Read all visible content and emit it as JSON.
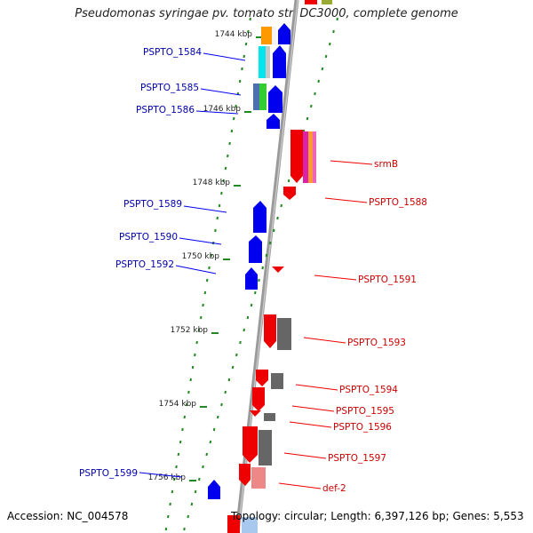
{
  "title": "Pseudomonas syringae pv. tomato str. DC3000, complete genome",
  "footer": {
    "accession": "Accession: NC_004578",
    "topology": "Topology: circular; Length: 6,397,126 bp; Genes: 5,553"
  },
  "colors": {
    "forward": "#0000ee",
    "reverse": "#ee0000",
    "forward_label": "#0000aa",
    "reverse_label": "#cc0000",
    "tick": "#228822",
    "backbone": "#888888"
  },
  "kbp_ticks": [
    {
      "label": "1744 kbp",
      "kbp": 1744
    },
    {
      "label": "1746 kbp",
      "kbp": 1746
    },
    {
      "label": "1748 kbp",
      "kbp": 1748
    },
    {
      "label": "1750 kbp",
      "kbp": 1750
    },
    {
      "label": "1752 kbp",
      "kbp": 1752
    },
    {
      "label": "1754 kbp",
      "kbp": 1754
    },
    {
      "label": "1756 kbp",
      "kbp": 1756
    }
  ],
  "forward_genes": [
    {
      "name": "PSPTO_1584"
    },
    {
      "name": "PSPTO_1585"
    },
    {
      "name": "PSPTO_1586"
    },
    {
      "name": "PSPTO_1589"
    },
    {
      "name": "PSPTO_1590"
    },
    {
      "name": "PSPTO_1592"
    },
    {
      "name": "PSPTO_1599"
    }
  ],
  "reverse_genes": [
    {
      "name": "srmB"
    },
    {
      "name": "PSPTO_1588"
    },
    {
      "name": "PSPTO_1591"
    },
    {
      "name": "PSPTO_1593"
    },
    {
      "name": "PSPTO_1594"
    },
    {
      "name": "PSPTO_1595"
    },
    {
      "name": "PSPTO_1596"
    },
    {
      "name": "PSPTO_1597"
    },
    {
      "name": "def-2"
    }
  ]
}
